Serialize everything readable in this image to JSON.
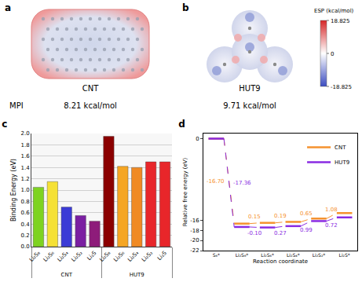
{
  "panels": [
    {
      "title": "a",
      "name": "CNT",
      "caption_label": "MPI",
      "caption": "8.21 kcal/mol"
    },
    {
      "title": "b",
      "name": "HUT9",
      "caption": "9.71 kcal/mol",
      "colorbar": {
        "title": "ESP (kcal/mol)",
        "range": [
          -18.825,
          18.825
        ],
        "ticks": [
          18.825,
          0,
          -18.825
        ],
        "colors": [
          "#3b4cc0",
          "#ffffff",
          "#d62728"
        ]
      }
    }
  ],
  "chart_data": [
    {
      "type": "bar",
      "title": "c",
      "categories": [
        "Li₂S₈",
        "Li₂S₆",
        "Li₂S₄",
        "Li₂S₂",
        "Li₂S"
      ],
      "series": [
        {
          "name": "CNT",
          "colors": [
            "#7ed321",
            "#f5e135",
            "#3b3bd6",
            "#7b1fa2",
            "#8e1c7a"
          ],
          "values": [
            1.05,
            1.15,
            0.7,
            0.55,
            0.45
          ]
        },
        {
          "name": "HUT9",
          "colors": [
            "#8b0000",
            "#f5a623",
            "#f08a24",
            "#e8262a",
            "#e8262a"
          ],
          "values": [
            1.95,
            1.42,
            1.4,
            1.5,
            1.5
          ]
        }
      ],
      "ylabel": "Binding Energy (eV)",
      "ylim": [
        0,
        2
      ],
      "yticks": [
        {
          "value": 0,
          "label": "0.0"
        },
        0.2,
        0.4,
        0.6,
        0.8,
        {
          "value": 1,
          "label": "1.0"
        },
        1.2,
        1.4,
        1.6,
        1.8,
        {
          "value": 2,
          "label": "2.0"
        }
      ],
      "grid": true
    },
    {
      "type": "line",
      "title": "d",
      "categories": [
        "S₈*",
        "Li₂S₈*",
        "Li₂S₆*",
        "Li₂S₄*",
        "Li₂S₂*",
        "Li₂S*"
      ],
      "xlabel": "Reaction coordinate",
      "ylabel": "Relative free energy (eV)",
      "ylim": [
        -22,
        1
      ],
      "yticks": [
        0,
        -16,
        -18,
        -20,
        -22
      ],
      "legend": "top right",
      "series": [
        {
          "name": "CNT",
          "color": "#f5922f",
          "values": [
            0,
            -16.7,
            -16.55,
            -16.36,
            -15.71,
            -14.63
          ],
          "step_labels": [
            "-16.70",
            "0.15",
            "0.19",
            "0.65",
            "1.08"
          ]
        },
        {
          "name": "HUT9",
          "color": "#8a2be2",
          "values": [
            0,
            -17.36,
            -17.46,
            -17.19,
            -16.2,
            -15.48
          ],
          "step_labels": [
            "-17.36",
            "-0.10",
            "0.27",
            "0.99",
            "0.72"
          ]
        }
      ]
    }
  ]
}
